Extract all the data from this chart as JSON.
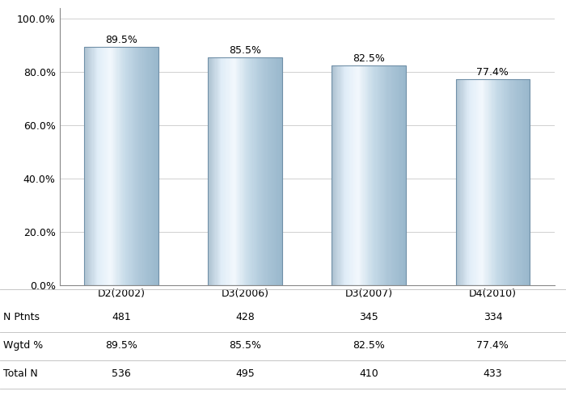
{
  "categories": [
    "D2(2002)",
    "D3(2006)",
    "D3(2007)",
    "D4(2010)"
  ],
  "values": [
    89.5,
    85.5,
    82.5,
    77.4
  ],
  "value_labels": [
    "89.5%",
    "85.5%",
    "82.5%",
    "77.4%"
  ],
  "ytick_labels": [
    "0.0%",
    "20.0%",
    "40.0%",
    "60.0%",
    "80.0%",
    "100.0%"
  ],
  "ytick_values": [
    0,
    20,
    40,
    60,
    80,
    100
  ],
  "ylim": [
    0,
    100
  ],
  "table_row_labels": [
    "N Ptnts",
    "Wgtd %",
    "Total N"
  ],
  "table_data": [
    [
      "481",
      "428",
      "345",
      "334"
    ],
    [
      "89.5%",
      "85.5%",
      "82.5%",
      "77.4%"
    ],
    [
      "536",
      "495",
      "410",
      "433"
    ]
  ],
  "background_color": "#ffffff",
  "grid_color": "#d0d0d0",
  "text_color": "#000000",
  "font_size": 9,
  "bar_edge_color": "#7090a8",
  "bar_width": 0.6,
  "gradient_stops": [
    [
      0.0,
      [
        0.68,
        0.76,
        0.82
      ]
    ],
    [
      0.18,
      [
        0.88,
        0.93,
        0.97
      ]
    ],
    [
      0.35,
      [
        0.95,
        0.97,
        0.99
      ]
    ],
    [
      0.55,
      [
        0.78,
        0.86,
        0.91
      ]
    ],
    [
      0.75,
      [
        0.68,
        0.78,
        0.85
      ]
    ],
    [
      1.0,
      [
        0.6,
        0.72,
        0.8
      ]
    ]
  ]
}
